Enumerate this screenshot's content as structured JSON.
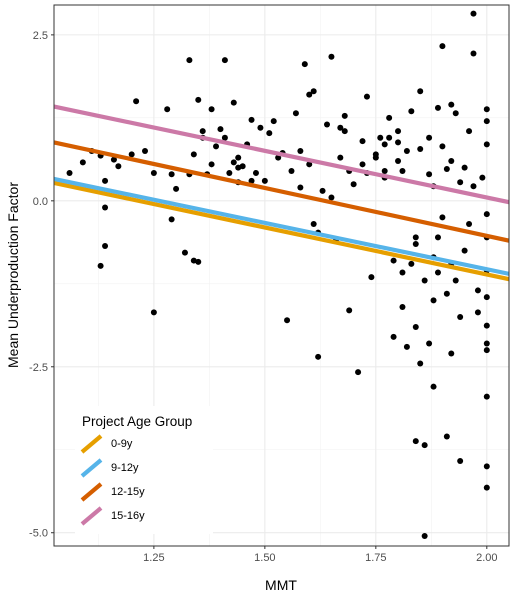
{
  "chart_data": {
    "type": "scatter",
    "title": "",
    "xlabel": "MMT",
    "ylabel": "Mean Underproduction Factor",
    "xlim": [
      1.025,
      2.05
    ],
    "ylim": [
      -5.2,
      2.95
    ],
    "x_ticks": [
      1.25,
      1.5,
      1.75,
      2.0
    ],
    "x_tick_labels": [
      "1.25",
      "1.50",
      "1.75",
      "2.00"
    ],
    "y_ticks": [
      2.5,
      0.0,
      -2.5,
      -5.0
    ],
    "y_tick_labels": [
      "2.5",
      "0.0",
      "-2.5",
      "-5.0"
    ],
    "grid": true,
    "legend": {
      "title": "Project Age Group",
      "placement": "bottom-left",
      "entries": [
        "0-9y",
        "9-12y",
        "12-15y",
        "15-16y"
      ]
    },
    "points": [
      [
        1.06,
        0.42
      ],
      [
        1.09,
        0.58
      ],
      [
        1.11,
        0.75
      ],
      [
        1.13,
        0.68
      ],
      [
        1.13,
        -0.98
      ],
      [
        1.14,
        -0.1
      ],
      [
        1.14,
        -0.68
      ],
      [
        1.14,
        0.3
      ],
      [
        1.16,
        0.62
      ],
      [
        1.17,
        0.52
      ],
      [
        1.2,
        0.7
      ],
      [
        1.21,
        1.5
      ],
      [
        1.23,
        0.75
      ],
      [
        1.25,
        0.42
      ],
      [
        1.25,
        -1.68
      ],
      [
        1.28,
        1.38
      ],
      [
        1.29,
        -0.28
      ],
      [
        1.3,
        0.18
      ],
      [
        1.32,
        -0.78
      ],
      [
        1.33,
        0.4
      ],
      [
        1.33,
        2.12
      ],
      [
        1.34,
        -0.9
      ],
      [
        1.34,
        0.7
      ],
      [
        1.35,
        -0.92
      ],
      [
        1.35,
        1.52
      ],
      [
        1.36,
        1.05
      ],
      [
        1.37,
        0.4
      ],
      [
        1.38,
        0.55
      ],
      [
        1.38,
        1.38
      ],
      [
        1.39,
        0.82
      ],
      [
        1.4,
        1.08
      ],
      [
        1.41,
        0.95
      ],
      [
        1.41,
        2.12
      ],
      [
        1.42,
        0.42
      ],
      [
        1.43,
        0.58
      ],
      [
        1.43,
        1.48
      ],
      [
        1.44,
        0.5
      ],
      [
        1.44,
        0.28
      ],
      [
        1.45,
        0.52
      ],
      [
        1.46,
        0.85
      ],
      [
        1.47,
        1.22
      ],
      [
        1.48,
        0.42
      ],
      [
        1.49,
        1.1
      ],
      [
        1.5,
        0.3
      ],
      [
        1.51,
        1.02
      ],
      [
        1.52,
        1.2
      ],
      [
        1.54,
        0.72
      ],
      [
        1.55,
        -1.8
      ],
      [
        1.57,
        1.32
      ],
      [
        1.58,
        0.75
      ],
      [
        1.58,
        0.2
      ],
      [
        1.59,
        2.06
      ],
      [
        1.6,
        1.6
      ],
      [
        1.6,
        0.55
      ],
      [
        1.61,
        -0.35
      ],
      [
        1.61,
        1.65
      ],
      [
        1.62,
        -2.35
      ],
      [
        1.62,
        -0.48
      ],
      [
        1.63,
        0.15
      ],
      [
        1.64,
        1.15
      ],
      [
        1.65,
        2.17
      ],
      [
        1.65,
        0.05
      ],
      [
        1.66,
        -0.6
      ],
      [
        1.67,
        0.65
      ],
      [
        1.68,
        1.05
      ],
      [
        1.68,
        1.28
      ],
      [
        1.69,
        0.45
      ],
      [
        1.69,
        -1.65
      ],
      [
        1.7,
        0.25
      ],
      [
        1.71,
        -2.58
      ],
      [
        1.72,
        0.55
      ],
      [
        1.73,
        1.57
      ],
      [
        1.73,
        0.42
      ],
      [
        1.74,
        -1.15
      ],
      [
        1.75,
        0.65
      ],
      [
        1.76,
        0.95
      ],
      [
        1.77,
        0.85
      ],
      [
        1.77,
        0.45
      ],
      [
        1.78,
        1.25
      ],
      [
        1.78,
        0.95
      ],
      [
        1.79,
        -0.9
      ],
      [
        1.79,
        -2.05
      ],
      [
        1.8,
        0.88
      ],
      [
        1.8,
        0.6
      ],
      [
        1.81,
        0.45
      ],
      [
        1.81,
        -1.6
      ],
      [
        1.81,
        -1.08
      ],
      [
        1.82,
        -2.2
      ],
      [
        1.82,
        0.75
      ],
      [
        1.83,
        -0.95
      ],
      [
        1.83,
        1.35
      ],
      [
        1.84,
        -3.62
      ],
      [
        1.84,
        -1.9
      ],
      [
        1.84,
        -0.55
      ],
      [
        1.85,
        1.65
      ],
      [
        1.85,
        0.78
      ],
      [
        1.85,
        -2.45
      ],
      [
        1.86,
        -1.2
      ],
      [
        1.86,
        -5.05
      ],
      [
        1.86,
        -3.68
      ],
      [
        1.87,
        0.4
      ],
      [
        1.87,
        -2.15
      ],
      [
        1.87,
        0.95
      ],
      [
        1.88,
        -1.5
      ],
      [
        1.88,
        -2.8
      ],
      [
        1.88,
        0.22
      ],
      [
        1.89,
        1.4
      ],
      [
        1.89,
        -1.08
      ],
      [
        1.89,
        -0.55
      ],
      [
        1.9,
        2.33
      ],
      [
        1.9,
        0.82
      ],
      [
        1.91,
        -1.4
      ],
      [
        1.91,
        0.48
      ],
      [
        1.91,
        -3.55
      ],
      [
        1.92,
        -0.95
      ],
      [
        1.92,
        -2.3
      ],
      [
        1.92,
        0.6
      ],
      [
        1.93,
        1.32
      ],
      [
        1.93,
        -1.2
      ],
      [
        1.94,
        0.28
      ],
      [
        1.94,
        -1.75
      ],
      [
        1.94,
        -3.92
      ],
      [
        1.95,
        -0.75
      ],
      [
        1.96,
        1.05
      ],
      [
        1.96,
        -0.35
      ],
      [
        1.97,
        0.22
      ],
      [
        1.97,
        2.22
      ],
      [
        1.97,
        2.82
      ],
      [
        1.98,
        -1.68
      ],
      [
        1.98,
        -1.35
      ],
      [
        1.99,
        0.35
      ],
      [
        2.0,
        1.38
      ],
      [
        2.0,
        1.2
      ],
      [
        2.0,
        0.85
      ],
      [
        2.0,
        -0.2
      ],
      [
        2.0,
        -0.55
      ],
      [
        2.0,
        -1.05
      ],
      [
        2.0,
        -1.45
      ],
      [
        2.0,
        -1.88
      ],
      [
        2.0,
        -2.15
      ],
      [
        2.0,
        -2.25
      ],
      [
        2.0,
        -2.95
      ],
      [
        2.0,
        -4.0
      ],
      [
        2.0,
        -4.32
      ],
      [
        1.9,
        -0.25
      ],
      [
        1.88,
        -0.85
      ],
      [
        1.77,
        0.35
      ],
      [
        1.72,
        0.9
      ],
      [
        1.67,
        1.1
      ],
      [
        1.56,
        0.45
      ],
      [
        1.53,
        0.65
      ],
      [
        1.47,
        0.3
      ],
      [
        1.44,
        0.65
      ],
      [
        1.36,
        0.95
      ],
      [
        1.29,
        0.4
      ],
      [
        1.8,
        1.05
      ],
      [
        1.92,
        1.45
      ],
      [
        1.84,
        -0.65
      ],
      [
        1.95,
        0.5
      ],
      [
        1.75,
        0.7
      ]
    ],
    "series": [
      {
        "name": "0-9y",
        "color": "#E69F00",
        "x": [
          1.025,
          2.05
        ],
        "y": [
          0.27,
          -1.18
        ]
      },
      {
        "name": "9-12y",
        "color": "#56B4E9",
        "x": [
          1.025,
          2.05
        ],
        "y": [
          0.33,
          -1.1
        ]
      },
      {
        "name": "12-15y",
        "color": "#D55E00",
        "x": [
          1.025,
          2.05
        ],
        "y": [
          0.88,
          -0.6
        ]
      },
      {
        "name": "15-16y",
        "color": "#CC79A7",
        "x": [
          1.025,
          2.05
        ],
        "y": [
          1.42,
          -0.02
        ]
      }
    ]
  }
}
